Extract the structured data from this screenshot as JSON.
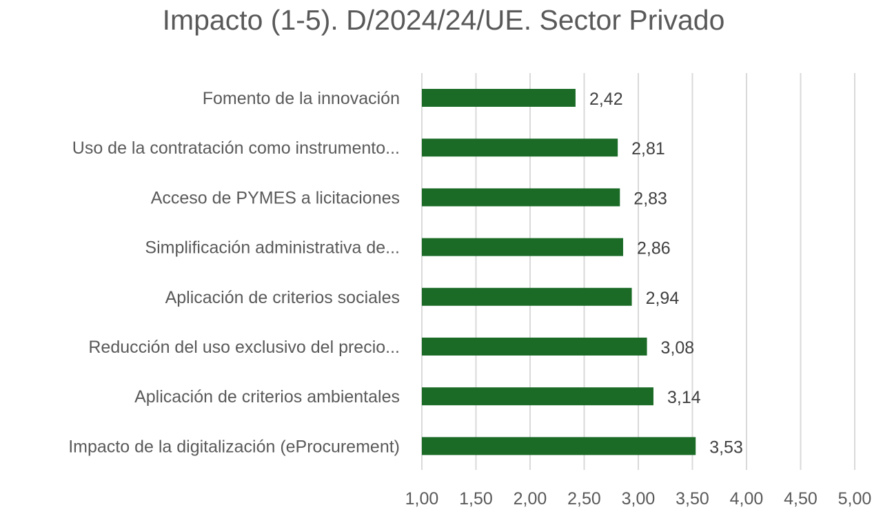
{
  "chart_data": {
    "type": "bar",
    "orientation": "horizontal",
    "title": "Impacto (1-5). D/2024/24/UE. Sector Privado",
    "categories": [
      "Fomento de la innovación",
      "Uso de la contratación como instrumento...",
      "Acceso de PYMES a licitaciones",
      "Simplificación administrativa de...",
      "Aplicación de criterios sociales",
      "Reducción del uso exclusivo del precio...",
      "Aplicación de criterios ambientales",
      "Impacto de la digitalización (eProcurement)"
    ],
    "values": [
      2.42,
      2.81,
      2.83,
      2.86,
      2.94,
      3.08,
      3.14,
      3.53
    ],
    "data_labels": [
      "2,42",
      "2,81",
      "2,83",
      "2,86",
      "2,94",
      "3,08",
      "3,14",
      "3,53"
    ],
    "xlim": [
      1,
      5
    ],
    "ticks": [
      1,
      1.5,
      2,
      2.5,
      3,
      3.5,
      4,
      4.5,
      5
    ],
    "tick_labels": [
      "1,00",
      "1,50",
      "2,00",
      "2,50",
      "3,00",
      "3,50",
      "4,00",
      "4,50",
      "5,00"
    ],
    "bar_color": "#1b6b27",
    "grid": true,
    "legend": "none"
  }
}
